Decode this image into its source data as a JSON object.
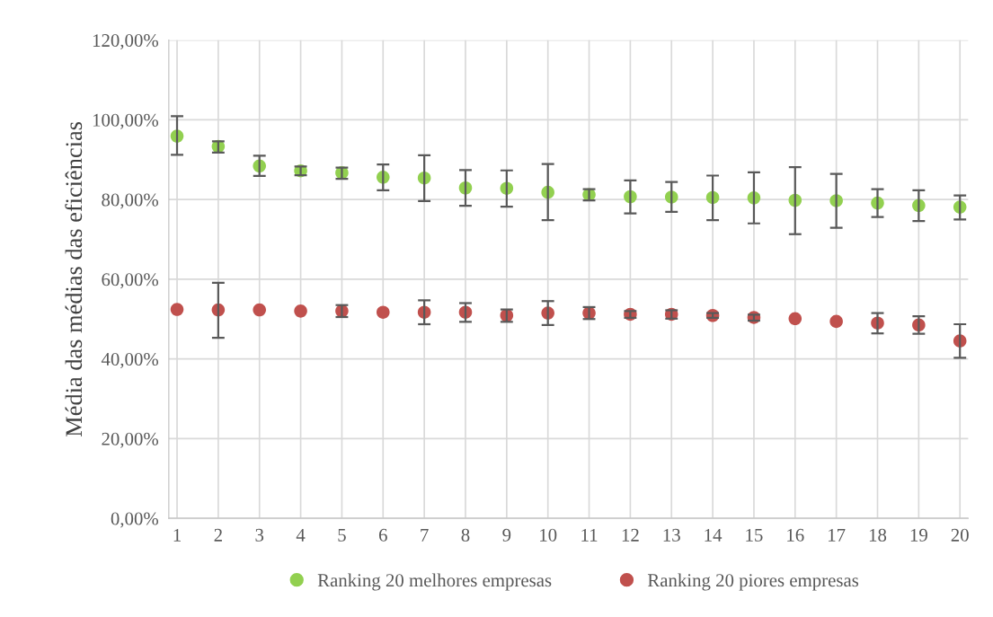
{
  "chart_data": {
    "type": "scatter",
    "ylabel": "Média das médias das eficiências",
    "categories": [
      "1",
      "2",
      "3",
      "4",
      "5",
      "6",
      "7",
      "8",
      "9",
      "10",
      "11",
      "12",
      "13",
      "14",
      "15",
      "16",
      "17",
      "18",
      "19",
      "20"
    ],
    "series": [
      {
        "name": "Ranking 20 melhores empresas",
        "color": "#92d050",
        "values": [
          95.9,
          93.3,
          88.4,
          87.2,
          86.7,
          85.6,
          85.4,
          82.9,
          82.8,
          81.8,
          81.2,
          80.7,
          80.6,
          80.5,
          80.4,
          79.8,
          79.7,
          79.1,
          78.5,
          78.1
        ],
        "errors": [
          [
            91.2,
            100.9
          ],
          [
            91.8,
            94.6
          ],
          [
            85.9,
            91.0
          ],
          [
            86.1,
            88.3
          ],
          [
            85.2,
            88.0
          ],
          [
            82.3,
            88.8
          ],
          [
            79.6,
            91.1
          ],
          [
            78.4,
            87.4
          ],
          [
            78.2,
            87.3
          ],
          [
            74.8,
            88.9
          ],
          [
            79.8,
            82.6
          ],
          [
            76.5,
            84.8
          ],
          [
            76.9,
            84.4
          ],
          [
            74.8,
            86.0
          ],
          [
            74.0,
            86.8
          ],
          [
            71.3,
            88.1
          ],
          [
            72.9,
            86.4
          ],
          [
            75.6,
            82.6
          ],
          [
            74.6,
            82.3
          ],
          [
            75.0,
            81.0
          ]
        ]
      },
      {
        "name": "Ranking 20 piores empresas",
        "color": "#c0504d",
        "values": [
          52.4,
          52.3,
          52.3,
          52.0,
          52.0,
          51.7,
          51.7,
          51.7,
          50.9,
          51.5,
          51.5,
          51.2,
          51.2,
          50.9,
          50.4,
          50.1,
          49.4,
          49.0,
          48.5,
          44.5
        ],
        "errors": [
          null,
          [
            45.3,
            59.1
          ],
          null,
          null,
          [
            50.5,
            53.5
          ],
          null,
          [
            48.7,
            54.7
          ],
          [
            49.3,
            54.0
          ],
          [
            49.3,
            52.4
          ],
          [
            48.5,
            54.5
          ],
          [
            50.0,
            53.0
          ],
          [
            50.3,
            52.0
          ],
          [
            50.1,
            52.2
          ],
          [
            50.3,
            51.5
          ],
          [
            49.6,
            51.1
          ],
          null,
          null,
          [
            46.4,
            51.5
          ],
          [
            46.3,
            50.7
          ],
          [
            40.3,
            48.7
          ]
        ]
      }
    ],
    "ylim": [
      0,
      120
    ],
    "yticks": [
      {
        "value": 0,
        "label": "0,00%"
      },
      {
        "value": 20,
        "label": "20,00%"
      },
      {
        "value": 40,
        "label": "40,00%"
      },
      {
        "value": 60,
        "label": "60,00%"
      },
      {
        "value": 80,
        "label": "80,00%"
      },
      {
        "value": 100,
        "label": "100,00%"
      },
      {
        "value": 120,
        "label": "120,00%"
      }
    ],
    "grid": true,
    "legend": "bottom",
    "marker": "circle"
  }
}
